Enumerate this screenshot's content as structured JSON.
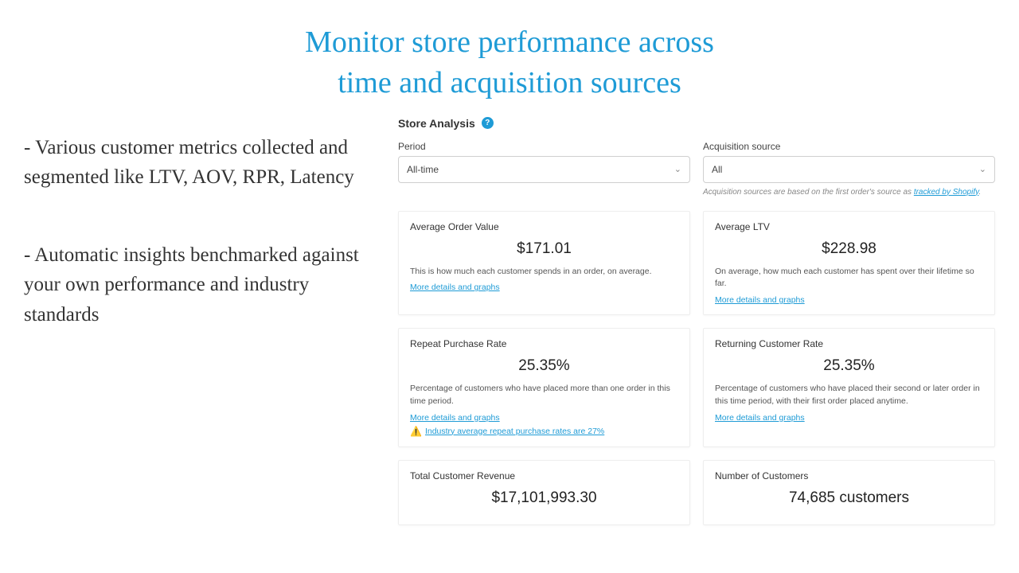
{
  "title_line1": "Monitor store performance across",
  "title_line2": "time and acquisition sources",
  "bullets": [
    "- Various customer metrics collected and segmented like LTV, AOV, RPR, Latency",
    "- Automatic insights benchmarked against your own performance and industry standards"
  ],
  "dashboard": {
    "title": "Store Analysis",
    "filters": {
      "period": {
        "label": "Period",
        "value": "All-time"
      },
      "acquisition": {
        "label": "Acquisition source",
        "value": "All",
        "note_prefix": "Acquisition sources are based on the first order's source as ",
        "note_link": "tracked by Shopify"
      }
    },
    "cards": {
      "aov": {
        "title": "Average Order Value",
        "value": "$171.01",
        "desc": "This is how much each customer spends in an order, on average.",
        "link": "More details and graphs"
      },
      "ltv": {
        "title": "Average LTV",
        "value": "$228.98",
        "desc": "On average, how much each customer has spent over their lifetime so far.",
        "link": "More details and graphs"
      },
      "rpr": {
        "title": "Repeat Purchase Rate",
        "value": "25.35%",
        "desc": "Percentage of customers who have placed more than one order in this time period.",
        "link": "More details and graphs",
        "insight": "Industry average repeat purchase rates are 27%"
      },
      "rcr": {
        "title": "Returning Customer Rate",
        "value": "25.35%",
        "desc": "Percentage of customers who have placed their second or later order in this time period, with their first order placed anytime.",
        "link": "More details and graphs"
      },
      "revenue": {
        "title": "Total Customer Revenue",
        "value": "$17,101,993.30"
      },
      "customers": {
        "title": "Number of Customers",
        "value": "74,685 customers"
      }
    }
  },
  "colors": {
    "accent": "#1e9bd6",
    "text": "#333333",
    "muted": "#888888"
  }
}
